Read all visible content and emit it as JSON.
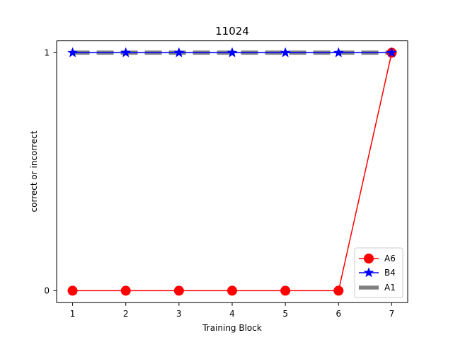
{
  "chart_data": {
    "type": "line",
    "title": "11024",
    "xlabel": "Training Block",
    "ylabel": "correct or incorrect",
    "x": [
      1,
      2,
      3,
      4,
      5,
      6,
      7
    ],
    "xticks": [
      "1",
      "2",
      "3",
      "4",
      "5",
      "6",
      "7"
    ],
    "yticks": [
      "0",
      "1"
    ],
    "xlim": [
      0.7,
      7.3
    ],
    "ylim": [
      -0.05,
      1.05
    ],
    "grid": false,
    "legend_position": "lower-right",
    "series": [
      {
        "name": "A6",
        "values": [
          0,
          0,
          0,
          0,
          0,
          0,
          1
        ],
        "color": "#ff0000",
        "marker": "circle",
        "line_style": "solid"
      },
      {
        "name": "B4",
        "values": [
          1,
          1,
          1,
          1,
          1,
          1,
          1
        ],
        "color": "#0000ff",
        "marker": "star",
        "line_style": "solid"
      },
      {
        "name": "A1",
        "values": [
          1,
          1,
          1,
          1,
          1,
          1,
          1
        ],
        "color": "#808080",
        "marker": "none",
        "line_style": "dashed"
      }
    ]
  }
}
